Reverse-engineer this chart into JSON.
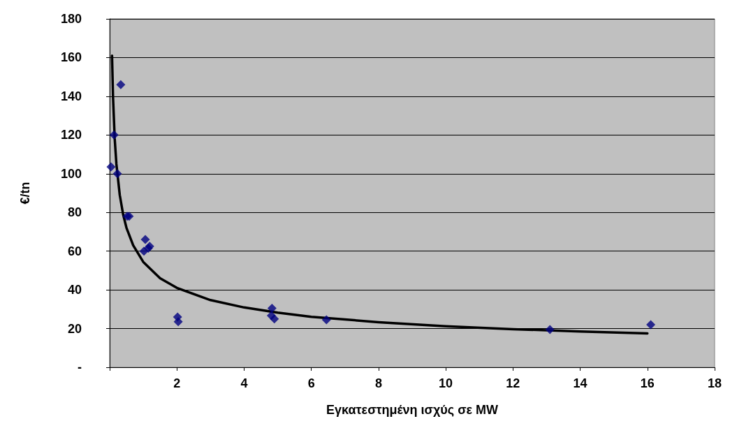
{
  "chart_data": {
    "type": "scatter",
    "xlabel": "Εγκατεστημένη ισχύς σε MW",
    "ylabel": "€/tn",
    "xlim": [
      0,
      18
    ],
    "xticks": [
      {
        "value": 0,
        "label": null
      },
      2,
      4,
      6,
      8,
      10,
      12,
      14,
      16,
      18
    ],
    "ylim": [
      0,
      180
    ],
    "yticks": [
      {
        "value": 0,
        "label": "-"
      },
      20,
      40,
      60,
      80,
      100,
      120,
      140,
      160,
      180
    ],
    "grid": "y",
    "series": [
      {
        "color": "#000080",
        "marker": "diamond",
        "x": [
          0.33,
          0.13,
          0.04,
          0.23,
          0.52,
          0.58,
          1.06,
          1.15,
          1.19,
          1.02,
          2.02,
          2.04,
          4.83,
          4.81,
          4.9,
          6.45,
          13.1,
          16.1
        ],
        "values": [
          146,
          120,
          103.5,
          100,
          78,
          78,
          66,
          61.5,
          62.5,
          60,
          26,
          23.5,
          30.5,
          26.7,
          25,
          24.5,
          19.5,
          22
        ]
      },
      {
        "type": "line",
        "color": "#000000",
        "marker": "none",
        "line_style": "solid",
        "x": [
          0.07,
          0.1,
          0.15,
          0.2,
          0.3,
          0.4,
          0.5,
          0.7,
          1,
          1.5,
          2,
          3,
          4,
          5,
          6,
          8,
          10,
          12,
          14,
          16
        ],
        "values": [
          161,
          139.5,
          118,
          105,
          89,
          79,
          72,
          63,
          54.4,
          46,
          41,
          34.7,
          30.9,
          28.2,
          26.1,
          23.3,
          21.2,
          19.7,
          18.5,
          17.5
        ]
      }
    ]
  }
}
